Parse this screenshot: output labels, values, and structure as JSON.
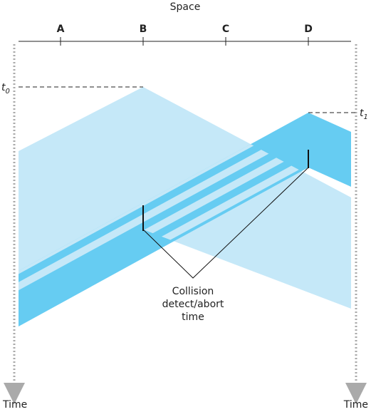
{
  "header": {
    "title": "Space"
  },
  "nodes": [
    {
      "label": "A"
    },
    {
      "label": "B"
    },
    {
      "label": "C"
    },
    {
      "label": "D"
    }
  ],
  "time_marks": [
    {
      "label": "t",
      "subscript": "0"
    },
    {
      "label": "t",
      "subscript": "1"
    }
  ],
  "annotation": {
    "lines": [
      "Collision",
      "detect/abort",
      "time"
    ]
  },
  "axes": {
    "left": "Time",
    "right": "Time"
  }
}
